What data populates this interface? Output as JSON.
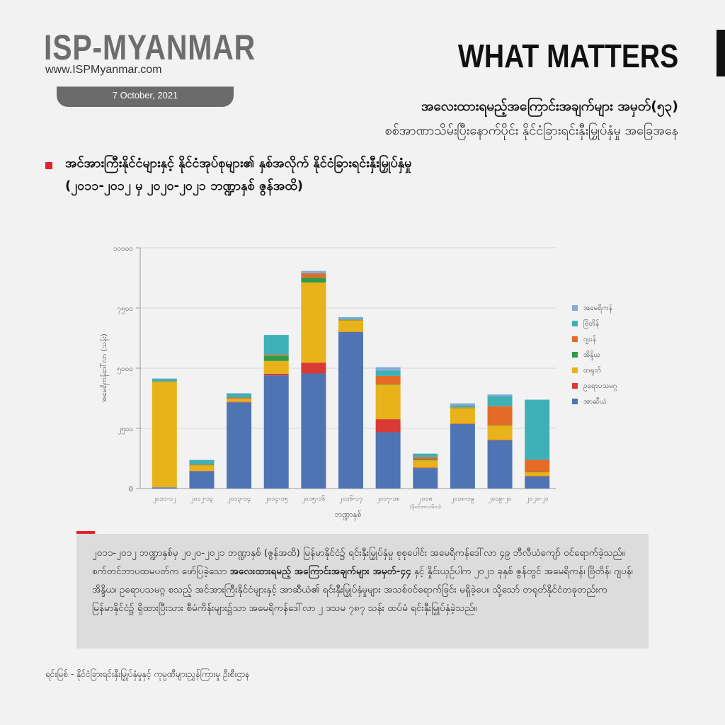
{
  "header": {
    "logo": "ISP-MYANMAR",
    "website": "www.ISPMyanmar.com",
    "date": "7 October, 2021",
    "brand_tagline": "WHAT MATTERS",
    "series_title": "အလေးထားရမည့်အကြောင်းအချက်များ အမှတ်(၅၃)",
    "series_subtitle": "စစ်အာဏာသိမ်းပြီးနောက်ပိုင်း နိုင်ငံခြားရင်းနှီးမြှုပ်နှံမှု အခြေအနေ"
  },
  "section": {
    "title_line1": "အင်အားကြီးနိုင်ငံများနှင့် နိုင်ငံအုပ်စုများ၏ နှစ်အလိုက် နိုင်ငံခြားရင်းနှီးမြှုပ်နှံမှု",
    "title_line2": "(၂၀၁၁-၂၀၁၂ မှ ၂၀၂၀-၂၀၂၁ ဘဏ္ဍာနှစ် ဇွန်အထိ)"
  },
  "colors": {
    "america": "#87a9d6",
    "britain": "#3fb0b6",
    "japan": "#e46a26",
    "india": "#2f9a48",
    "china": "#e8b21a",
    "europe": "#d93a35",
    "asean": "#4f74b3"
  },
  "chart_data": {
    "type": "bar",
    "stacked": true,
    "ylabel": "အမေရိကန်ဒေါ်လာ (သန်း)",
    "xlabel": "ဘဏ္ဍာနှစ်",
    "ylim": [
      0,
      10000
    ],
    "yticks": [
      0,
      2500,
      5000,
      7500,
      10000
    ],
    "ytick_labels": [
      "0",
      "၂၅၀၀",
      "၅၀၀၀",
      "၇၅၀၀",
      "၁၀၀၀၀"
    ],
    "grid": true,
    "legend_position": "right",
    "categories": [
      "၂၀၁၁-၁၂",
      "၂၀၁၂-၁၃",
      "၂၀၁၃-၁၄",
      "၂၀၁၄-၁၅",
      "၂၀၁၅-၁၆",
      "၂၀၁၆-၁၇",
      "၂၀၁၇-၁၈",
      "၂၀၁၈",
      "၂၀၁၈-၁၉",
      "၂၀၁၉-၂၀",
      "၂၀၂၀-၂၁"
    ],
    "category_notes": [
      "",
      "",
      "",
      "",
      "",
      "",
      "",
      "(နိုဝင်ဘာလ၆လ)",
      "",
      "",
      ""
    ],
    "series": [
      {
        "name": "အာဆီယံ",
        "values": [
          50,
          720,
          3580,
          4700,
          4780,
          6500,
          2340,
          850,
          2680,
          2000,
          500
        ]
      },
      {
        "name": "ဥရောပသမဂ္ဂ",
        "values": [
          0,
          10,
          20,
          70,
          450,
          10,
          540,
          20,
          10,
          20,
          20
        ]
      },
      {
        "name": "တရုတ်",
        "values": [
          4380,
          240,
          130,
          530,
          3330,
          480,
          1430,
          300,
          650,
          600,
          160
        ]
      },
      {
        "name": "အိန္ဒိယ",
        "values": [
          20,
          10,
          10,
          200,
          200,
          10,
          20,
          40,
          20,
          10,
          10
        ]
      },
      {
        "name": "ဂျပန်",
        "values": [
          10,
          20,
          40,
          50,
          180,
          10,
          350,
          90,
          20,
          790,
          500
        ]
      },
      {
        "name": "ဗြိတိန်",
        "values": [
          100,
          180,
          170,
          830,
          10,
          60,
          220,
          150,
          80,
          420,
          2500
        ]
      },
      {
        "name": "အမေရိကန်",
        "values": [
          10,
          10,
          10,
          0,
          90,
          50,
          140,
          0,
          80,
          70,
          0
        ]
      }
    ]
  },
  "note": {
    "p1": "၂၀၁၁-၂၀၁၂ ဘဏ္ဍာနှစ်မှ ၂၀၂၀-၂၀၂၁ ဘဏ္ဍာနှစ် (ဇွန်အထိ) မြန်မာနိုင်ငံ၌ ရင်းနှီးမြှုပ်နှံမှု စုစုပေါင်း အမေရိကန်ဒေါ်လာ ၄၉ ဘီလီယံကျော် ဝင်ရောက်ခဲ့သည်။ စက်တင်ဘာပထမပတ်က ဖော်ပြခဲ့သော ",
    "p1_bold": "အလေးထားရမည့် အကြောင်းအချက်များ အမှတ်-၄၄",
    "p2": " နှင့် နှိုင်းယှဉ်ပါက ၂၀၂၁ ခုနှစ် ဇွန်တွင် အမေရိကန်၊ ဗြိတိန်၊ ဂျပန်၊ အိန္ဒိယ၊ ဥရောပသမဂ္ဂ စသည့် အင်အားကြီးနိုင်ငံများနှင့် အာဆီယံ၏ ရင်းနှီးမြှုပ်နှံမှုများ အသစ်ဝင်ရောက်ခြင်း မရှိခဲ့ပေ။ သို့သော် တရုတ်နိုင်ငံတခုတည်းက မြန်မာနိုင်ငံ၌ ရှိထားပြီးသား စီမံကိန်းများ၌သာ အမေရိကန်ဒေါ်လာ ၂ ဒသမ ၇၈၇ သန်း ထပ်မံ ရင်းနှီးမြှုပ်နှံခဲ့သည်။"
  },
  "source": "ရင်းမြစ် -    နိုင်ငံခြားရင်းနှီးမြှုပ်နှံမှုနှင့် ကုမ္ပဏီများညွှန်ကြားမှု ဦးစီးဌာန"
}
